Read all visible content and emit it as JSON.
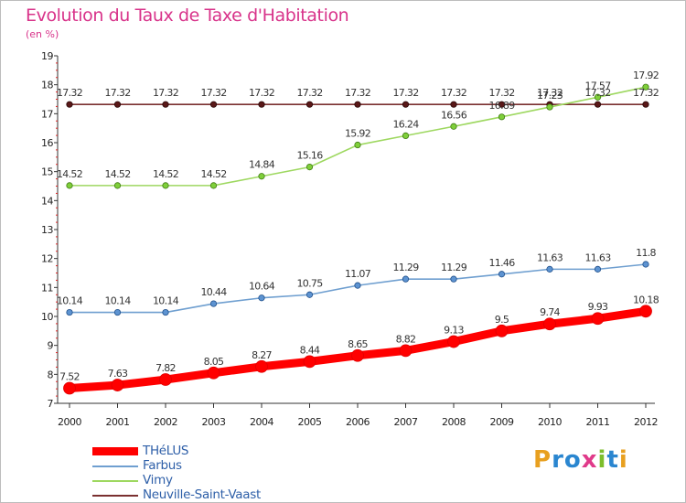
{
  "title": "Evolution du Taux de Taxe d'Habitation",
  "subtitle": "(en %)",
  "logo": {
    "text": "Proxiti",
    "letter_colors": [
      "#e8a020",
      "#2a86d0",
      "#2a86d0",
      "#e03a8a",
      "#7dbe2c",
      "#2a86d0",
      "#e8a020"
    ]
  },
  "chart_data": {
    "type": "line",
    "x": [
      "2000",
      "2001",
      "2002",
      "2003",
      "2004",
      "2005",
      "2006",
      "2007",
      "2008",
      "2009",
      "2010",
      "2011",
      "2012"
    ],
    "yticks": [
      7,
      8,
      9,
      10,
      11,
      12,
      13,
      14,
      15,
      16,
      17,
      18,
      19
    ],
    "ylim": [
      7,
      19
    ],
    "grid": false,
    "legend_position": "bottom-left",
    "series": [
      {
        "name": "THéLUS",
        "color": "#ff0000",
        "values": [
          7.52,
          7.63,
          7.82,
          8.05,
          8.27,
          8.44,
          8.65,
          8.82,
          9.13,
          9.5,
          9.74,
          9.93,
          10.18
        ],
        "labels": [
          "7.52",
          "7.63",
          "7.82",
          "8.05",
          "8.27",
          "8.44",
          "8.65",
          "8.82",
          "9.13",
          "9.5",
          "9.74",
          "9.93",
          "10.18"
        ]
      },
      {
        "name": "Farbus",
        "color": "#6f9fd0",
        "values": [
          10.14,
          10.14,
          10.14,
          10.44,
          10.64,
          10.75,
          11.07,
          11.29,
          11.29,
          11.46,
          11.63,
          11.63,
          11.8
        ],
        "labels": [
          "10.14",
          "10.14",
          "10.14",
          "10.44",
          "10.64",
          "10.75",
          "11.07",
          "11.29",
          "11.29",
          "11.46",
          "11.63",
          "11.63",
          "11.8"
        ]
      },
      {
        "name": "Vimy",
        "color": "#9ed860",
        "values": [
          14.52,
          14.52,
          14.52,
          14.52,
          14.84,
          15.16,
          15.92,
          16.24,
          16.56,
          16.89,
          17.23,
          17.57,
          17.92
        ],
        "labels": [
          "14.52",
          "14.52",
          "14.52",
          "14.52",
          "14.84",
          "15.16",
          "15.92",
          "16.24",
          "16.56",
          "16.89",
          "17.23",
          "17.57",
          "17.92"
        ]
      },
      {
        "name": "Neuville-Saint-Vaast",
        "color": "#7a3030",
        "values": [
          17.32,
          17.32,
          17.32,
          17.32,
          17.32,
          17.32,
          17.32,
          17.32,
          17.32,
          17.32,
          17.32,
          17.32,
          17.32
        ],
        "labels": [
          "17.32",
          "17.32",
          "17.32",
          "17.32",
          "17.32",
          "17.32",
          "17.32",
          "17.32",
          "17.32",
          "17.32",
          "17.32",
          "17.32",
          "17.32"
        ]
      }
    ]
  }
}
